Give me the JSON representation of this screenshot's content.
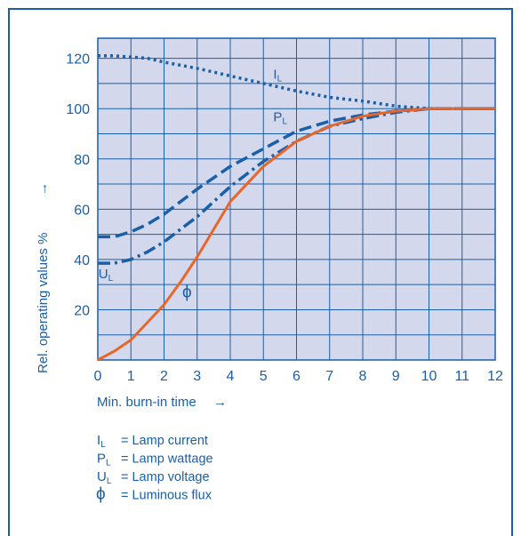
{
  "chart_data": {
    "type": "line",
    "xlabel": "Min. burn-in time",
    "xlabel_arrow": "→",
    "ylabel": "Rel. operating values %",
    "ylabel_arrow": "→",
    "xlim": [
      0,
      12
    ],
    "ylim": [
      0,
      128
    ],
    "x_ticks": [
      0,
      1,
      2,
      3,
      4,
      5,
      6,
      7,
      8,
      9,
      10,
      11,
      12
    ],
    "y_ticks": [
      20,
      40,
      60,
      80,
      100,
      120
    ],
    "grid": true,
    "plot_background": "#d4d8ec",
    "grid_color": "#1a5fa8",
    "text_color": "#1a5fa8",
    "series": [
      {
        "name": "IL",
        "label_main": "I",
        "label_sub": "L",
        "style": "dotted",
        "color": "#1a5fa8",
        "x": [
          0,
          0.5,
          1,
          1.5,
          2,
          3,
          4,
          5,
          6,
          7,
          8,
          9,
          10,
          11,
          12
        ],
        "values": [
          121,
          121,
          120.5,
          120,
          118.5,
          116,
          113,
          110,
          107,
          104.5,
          103,
          101,
          100,
          100,
          100
        ]
      },
      {
        "name": "PL",
        "label_main": "P",
        "label_sub": "L",
        "style": "dashed",
        "color": "#1a5fa8",
        "x": [
          0,
          0.5,
          1,
          1.5,
          2,
          2.5,
          3,
          4,
          5,
          6,
          7,
          8,
          9,
          10,
          11,
          12
        ],
        "values": [
          49,
          49,
          51,
          54,
          58,
          63,
          68,
          77,
          84,
          91,
          95,
          97.5,
          99,
          100,
          100,
          100
        ]
      },
      {
        "name": "UL",
        "label_main": "U",
        "label_sub": "L",
        "style": "dashdot",
        "color": "#1a5fa8",
        "x": [
          0,
          0.5,
          1,
          1.5,
          2,
          2.5,
          3,
          4,
          5,
          6,
          7,
          8,
          9,
          10,
          11,
          12
        ],
        "values": [
          38.5,
          38.5,
          40,
          43,
          47,
          52,
          57,
          69,
          79,
          87,
          93,
          96,
          98.5,
          100,
          100,
          100
        ]
      },
      {
        "name": "ϕ",
        "label_main": "ϕ",
        "label_sub": "",
        "style": "solid",
        "color": "#e8662a",
        "x": [
          0,
          0.5,
          1,
          1.5,
          2,
          2.5,
          3,
          3.5,
          4,
          5,
          6,
          7,
          8,
          9,
          10,
          11,
          12
        ],
        "values": [
          0,
          3.5,
          8,
          15,
          22,
          31,
          41,
          52,
          63,
          77,
          87,
          93,
          97,
          99,
          100,
          100,
          100
        ]
      }
    ],
    "legend": [
      {
        "symbol_main": "I",
        "symbol_sub": "L",
        "text": "= Lamp current"
      },
      {
        "symbol_main": "P",
        "symbol_sub": "L",
        "text": "= Lamp wattage"
      },
      {
        "symbol_main": "U",
        "symbol_sub": "L",
        "text": "= Lamp voltage"
      },
      {
        "symbol_main": "ϕ",
        "symbol_sub": "",
        "text": "= Luminous flux"
      }
    ],
    "legend_position": "bottom-left"
  }
}
